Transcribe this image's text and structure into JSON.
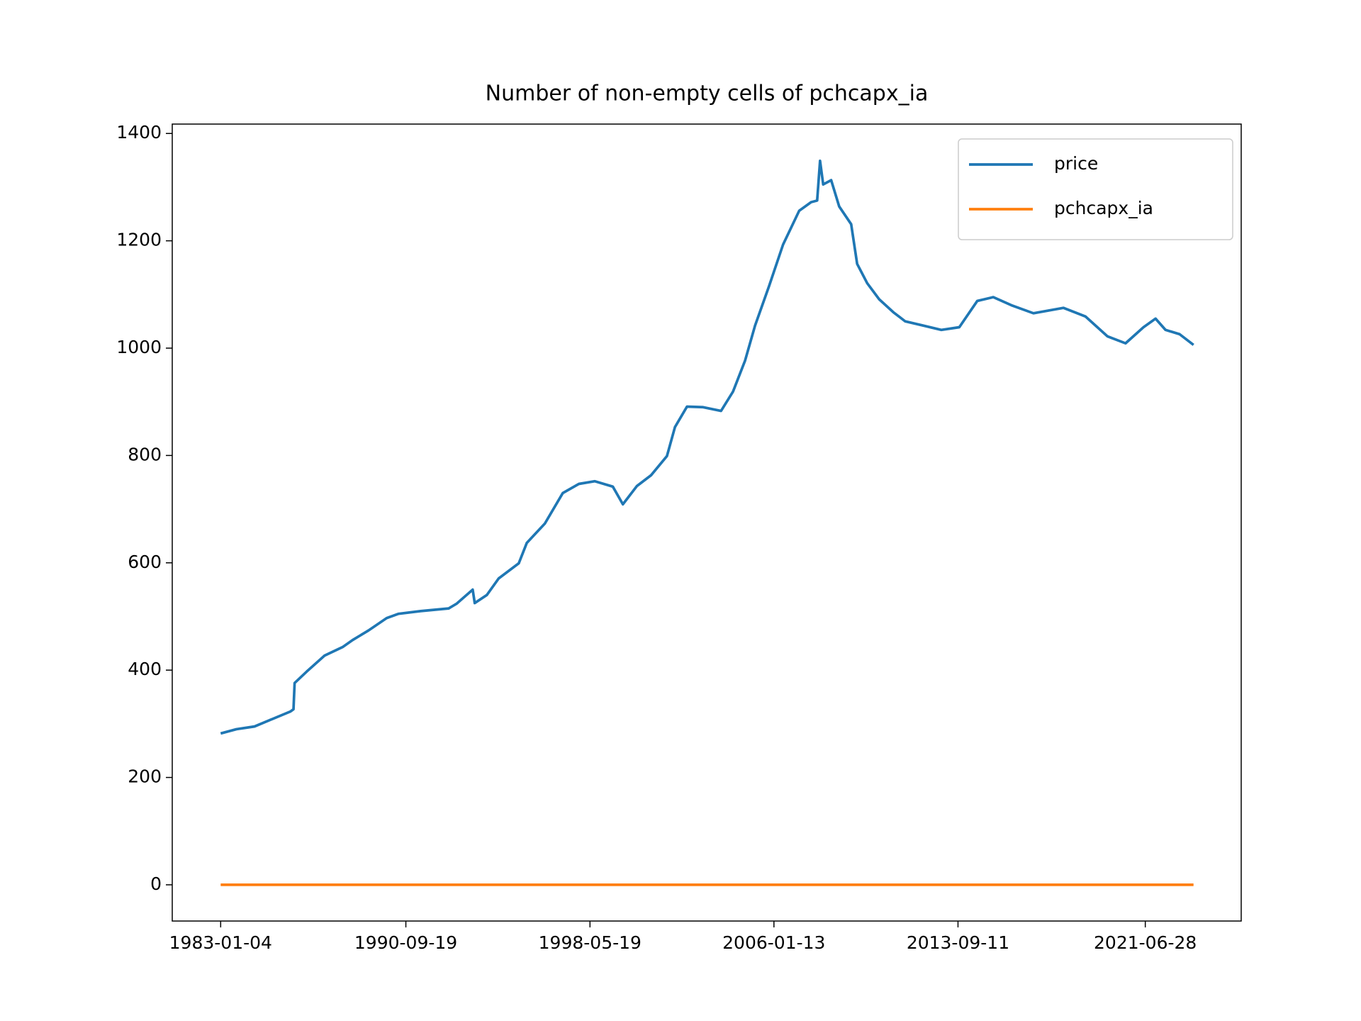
{
  "chart_data": {
    "type": "line",
    "title": "Number of non-empty cells of pchcapx_ia",
    "x": [
      "1983-01-04",
      "1983-09-01",
      "1984-06-01",
      "1985-03-01",
      "1985-12-01",
      "1986-01-15",
      "1986-02-01",
      "1986-08-01",
      "1987-05-01",
      "1988-02-01",
      "1988-07-01",
      "1989-03-01",
      "1989-12-01",
      "1990-06-01",
      "1991-05-01",
      "1992-07-01",
      "1992-11-01",
      "1993-07-01",
      "1993-08-01",
      "1994-02-01",
      "1994-08-01",
      "1995-06-01",
      "1995-10-01",
      "1996-07-01",
      "1997-04-01",
      "1997-12-01",
      "1998-08-01",
      "1999-05-01",
      "1999-10-01",
      "2000-05-01",
      "2000-12-01",
      "2001-08-01",
      "2001-12-01",
      "2002-06-01",
      "2003-02-01",
      "2003-11-01",
      "2004-05-01",
      "2004-11-01",
      "2005-04-01",
      "2005-11-01",
      "2006-06-01",
      "2007-02-01",
      "2007-08-01",
      "2007-11-01",
      "2007-12-15",
      "2008-02-01",
      "2008-06-01",
      "2008-10-01",
      "2009-04-01",
      "2009-07-01",
      "2009-12-01",
      "2010-06-01",
      "2011-01-01",
      "2011-07-01",
      "2012-04-01",
      "2013-01-01",
      "2013-10-01",
      "2014-07-01",
      "2015-03-01",
      "2015-12-01",
      "2016-11-01",
      "2018-02-01",
      "2019-01-01",
      "2019-12-01",
      "2020-09-01",
      "2021-06-01",
      "2021-12-01",
      "2022-05-01",
      "2022-12-01",
      "2023-07-01"
    ],
    "series": [
      {
        "name": "price",
        "color": "#1f77b4",
        "values": [
          282,
          290,
          295,
          309,
          323,
          327,
          376,
          397,
          427,
          443,
          456,
          474,
          497,
          505,
          510,
          515,
          524,
          550,
          525,
          540,
          571,
          599,
          637,
          673,
          730,
          747,
          752,
          742,
          709,
          743,
          763,
          799,
          853,
          891,
          890,
          883,
          919,
          977,
          1042,
          1116,
          1193,
          1256,
          1272,
          1275,
          1349,
          1305,
          1313,
          1264,
          1231,
          1157,
          1121,
          1091,
          1067,
          1050,
          1042,
          1034,
          1039,
          1088,
          1095,
          1080,
          1065,
          1075,
          1059,
          1022,
          1009,
          1039,
          1055,
          1034,
          1026,
          1006
        ]
      },
      {
        "name": "pchcapx_ia",
        "color": "#ff7f0e",
        "values": [
          0,
          0,
          0,
          0,
          0,
          0,
          0,
          0,
          0,
          0,
          0,
          0,
          0,
          0,
          0,
          0,
          0,
          0,
          0,
          0,
          0,
          0,
          0,
          0,
          0,
          0,
          0,
          0,
          0,
          0,
          0,
          0,
          0,
          0,
          0,
          0,
          0,
          0,
          0,
          0,
          0,
          0,
          0,
          0,
          0,
          0,
          0,
          0,
          0,
          0,
          0,
          0,
          0,
          0,
          0,
          0,
          0,
          0,
          0,
          0,
          0,
          0,
          0,
          0,
          0,
          0,
          0,
          0,
          0,
          0
        ]
      }
    ],
    "xlim": [
      "1980-12-29",
      "2025-06-25"
    ],
    "xticks": [
      "1983-01-04",
      "1990-09-19",
      "1998-05-19",
      "2006-01-13",
      "2013-09-11",
      "2021-06-28"
    ],
    "ylim": [
      -67.5,
      1417.5
    ],
    "yticks": [
      0,
      200,
      400,
      600,
      800,
      1000,
      1200,
      1400
    ],
    "legend": "upper right"
  }
}
